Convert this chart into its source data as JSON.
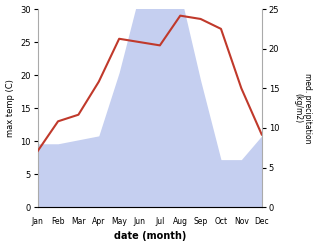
{
  "months": [
    "Jan",
    "Feb",
    "Mar",
    "Apr",
    "May",
    "Jun",
    "Jul",
    "Aug",
    "Sep",
    "Oct",
    "Nov",
    "Dec"
  ],
  "temperature": [
    8.5,
    13.0,
    14.0,
    19.0,
    25.5,
    25.0,
    24.5,
    29.0,
    28.5,
    27.0,
    18.0,
    11.0
  ],
  "precipitation": [
    8.0,
    8.0,
    8.5,
    9.0,
    17.0,
    27.0,
    27.5,
    27.0,
    16.0,
    6.0,
    6.0,
    9.0
  ],
  "temp_color": "#c0392b",
  "precip_fill_color": "#c5cff0",
  "temp_ylim": [
    0,
    30
  ],
  "precip_ylim": [
    0,
    25
  ],
  "temp_yticks": [
    0,
    5,
    10,
    15,
    20,
    25,
    30
  ],
  "precip_yticks": [
    0,
    5,
    10,
    15,
    20,
    25
  ],
  "ylabel_left": "max temp (C)",
  "ylabel_right": "med. precipitation\n(kg/m2)",
  "xlabel": "date (month)",
  "bg_color": "#ffffff",
  "left_axis_color": "#555555",
  "right_axis_color": "#555555"
}
